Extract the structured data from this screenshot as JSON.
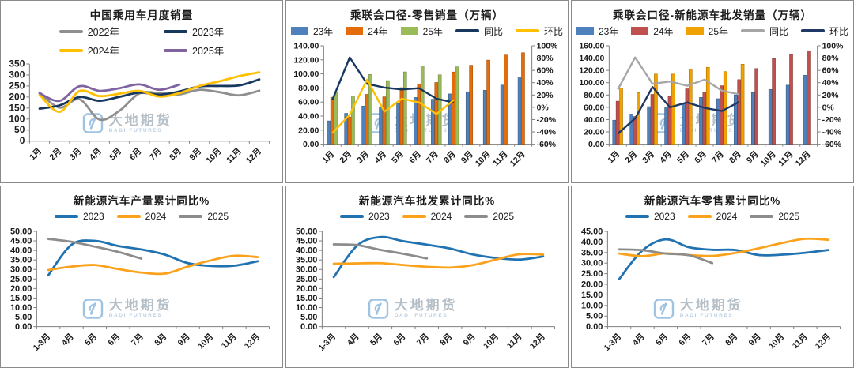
{
  "watermark": {
    "cn": "大地期货",
    "en": "DADI FUTURES"
  },
  "chart_data": [
    {
      "type": "line",
      "title": "中国乘用车月度销量",
      "legend_position": "top-2col",
      "grid": false,
      "categories": [
        "1月",
        "2月",
        "3月",
        "4月",
        "5月",
        "6月",
        "7月",
        "8月",
        "9月",
        "10月",
        "11月",
        "12月"
      ],
      "y_axis": {
        "min": 0,
        "max": 350,
        "step": 50,
        "format": "int"
      },
      "series": [
        {
          "name": "2022年",
          "color": "#8f8f8f",
          "values": [
            220,
            152,
            190,
            98,
            138,
            216,
            218,
            212,
            233,
            222,
            208,
            229
          ]
        },
        {
          "name": "2023年",
          "color": "#17375e",
          "values": [
            147,
            162,
            200,
            183,
            201,
            220,
            211,
            225,
            248,
            250,
            253,
            280
          ]
        },
        {
          "name": "2024年",
          "color": "#ffc000",
          "values": [
            211,
            133,
            227,
            204,
            215,
            228,
            202,
            218,
            250,
            271,
            295,
            312
          ]
        },
        {
          "name": "2025年",
          "color": "#8064a2",
          "values": [
            217,
            183,
            249,
            228,
            240,
            257,
            233,
            256
          ]
        }
      ]
    },
    {
      "type": "bar-line",
      "title": "乘联会口径-零售销量（万辆）",
      "legend_position": "top",
      "grid": false,
      "categories": [
        "1月",
        "2月",
        "3月",
        "4月",
        "5月",
        "6月",
        "7月",
        "8月",
        "9月",
        "10月",
        "11月",
        "12月"
      ],
      "y_left": {
        "min": 0,
        "max": 140,
        "step": 20,
        "format": "2dp"
      },
      "y_right": {
        "min": -60,
        "max": 100,
        "step": 20,
        "format": "pct"
      },
      "bar_series": [
        {
          "name": "23年",
          "color": "#4f81bd",
          "values": [
            33.2,
            43.9,
            54.3,
            52.7,
            58.0,
            66.5,
            64.1,
            71.6,
            74.6,
            76.7,
            84.1,
            94.5
          ]
        },
        {
          "name": "24年",
          "color": "#e46c0a",
          "values": [
            66.8,
            38.8,
            70.9,
            67.4,
            80.4,
            85.6,
            87.8,
            102.7,
            112.3,
            119.6,
            126.8,
            130.2
          ]
        },
        {
          "name": "25年",
          "color": "#9bbb59",
          "values": [
            74.4,
            68.6,
            99.1,
            90.5,
            102.8,
            111.1,
            98.7,
            110.0
          ]
        }
      ],
      "line_series": [
        {
          "name": "同比",
          "color": "#17375e",
          "values": [
            12,
            81,
            38,
            32,
            29,
            31,
            14,
            8
          ]
        },
        {
          "name": "环比",
          "color": "#ffc000",
          "values": [
            -42,
            -12,
            45,
            -7,
            14,
            8,
            -11,
            12
          ]
        }
      ]
    },
    {
      "type": "bar-line",
      "title": "乘联会口径-新能源车批发销量（万辆）",
      "legend_position": "top",
      "grid": false,
      "categories": [
        "1月",
        "2月",
        "3月",
        "4月",
        "5月",
        "6月",
        "7月",
        "8月",
        "9月",
        "10月",
        "11月",
        "12月"
      ],
      "y_left": {
        "min": 0,
        "max": 160,
        "step": 20,
        "format": "2dp"
      },
      "y_right": {
        "min": -60,
        "max": 100,
        "step": 20,
        "format": "pct"
      },
      "bar_series": [
        {
          "name": "23年",
          "color": "#4f81bd",
          "values": [
            39,
            49,
            61,
            60,
            67,
            76,
            74,
            80,
            84,
            89,
            96,
            112
          ]
        },
        {
          "name": "24年",
          "color": "#c0504d",
          "values": [
            70,
            45,
            81,
            78,
            90,
            85,
            95,
            105,
            123,
            139,
            146,
            152
          ]
        },
        {
          "name": "25年",
          "color": "#f0a202",
          "values": [
            91,
            84,
            114,
            114,
            122,
            125,
            118,
            130
          ]
        }
      ],
      "line_series": [
        {
          "name": "同比",
          "color": "#a6a6a6",
          "values": [
            29,
            81,
            38,
            42,
            35,
            45,
            27,
            21
          ]
        },
        {
          "name": "环比",
          "color": "#1f3864",
          "values": [
            -43,
            -18,
            33,
            0,
            8,
            -1,
            -6,
            9
          ]
        }
      ]
    },
    {
      "type": "line",
      "title": "新能源汽车产量累计同比%",
      "legend_position": "top",
      "grid": false,
      "categories": [
        "1-3月",
        "4月",
        "5月",
        "6月",
        "7月",
        "8月",
        "9月",
        "10月",
        "11月",
        "12月"
      ],
      "y_axis": {
        "min": 0,
        "max": 50,
        "step": 5,
        "format": "2dp"
      },
      "series": [
        {
          "name": "2023",
          "color": "#2172b0",
          "values": [
            27,
            43,
            45,
            42.3,
            40.5,
            37.8,
            33.3,
            31.8,
            32,
            34.3
          ]
        },
        {
          "name": "2024",
          "color": "#faa21b",
          "values": [
            29.7,
            31.5,
            32.3,
            30.2,
            28.4,
            27.8,
            31.5,
            34.8,
            37.2,
            36.5
          ]
        },
        {
          "name": "2025",
          "color": "#8c8c8c",
          "values": [
            46,
            44.5,
            42,
            39.2,
            35.7
          ]
        }
      ]
    },
    {
      "type": "line",
      "title": "新能源汽车批发累计同比%",
      "legend_position": "top",
      "grid": false,
      "categories": [
        "1-3月",
        "4月",
        "5月",
        "6月",
        "7月",
        "8月",
        "9月",
        "10月",
        "11月",
        "12月"
      ],
      "y_axis": {
        "min": 0,
        "max": 50,
        "step": 5,
        "format": "2dp"
      },
      "series": [
        {
          "name": "2023",
          "color": "#2172b0",
          "values": [
            26,
            42.5,
            47,
            44.8,
            43,
            41,
            37.8,
            36,
            35.2,
            36.8
          ]
        },
        {
          "name": "2024",
          "color": "#faa21b",
          "values": [
            33,
            33.2,
            33.3,
            32.3,
            31.4,
            31,
            32.3,
            35.3,
            38,
            37.8
          ]
        },
        {
          "name": "2025",
          "color": "#8c8c8c",
          "values": [
            43.2,
            42.8,
            40.3,
            38.2,
            35.8
          ]
        }
      ]
    },
    {
      "type": "line",
      "title": "新能源汽车零售累计同比%",
      "legend_position": "top",
      "grid": false,
      "categories": [
        "1-3月",
        "4月",
        "5月",
        "6月",
        "7月",
        "8月",
        "9月",
        "10月",
        "11月",
        "12月"
      ],
      "y_axis": {
        "min": 0,
        "max": 45,
        "step": 5,
        "format": "2dp"
      },
      "series": [
        {
          "name": "2023",
          "color": "#2172b0",
          "values": [
            22.5,
            36,
            41.2,
            37.5,
            36.3,
            36.2,
            33.8,
            34,
            34.9,
            36.2
          ]
        },
        {
          "name": "2024",
          "color": "#faa21b",
          "values": [
            34.5,
            33.3,
            34.6,
            33.8,
            33.4,
            34.8,
            37,
            39.5,
            41.5,
            41
          ]
        },
        {
          "name": "2025",
          "color": "#8c8c8c",
          "values": [
            36.5,
            36.1,
            34.5,
            33.7,
            30
          ]
        }
      ]
    }
  ]
}
